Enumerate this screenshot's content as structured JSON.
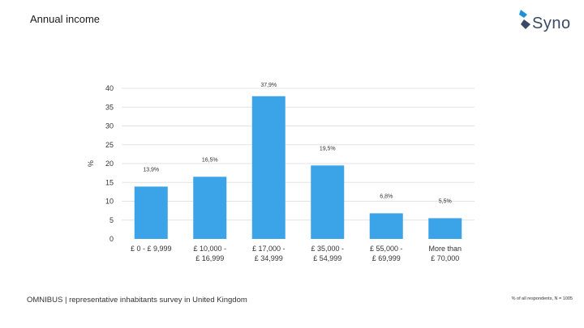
{
  "header": {
    "title": "Annual income",
    "logo_text": "Syno"
  },
  "footer": {
    "source": "OMNIBUS | representative inhabitants survey in United Kingdom",
    "base": "% of all respondents, N = 1005"
  },
  "colors": {
    "bar": "#3ba4e8",
    "grid": "#e3e3e3",
    "logo_mark": "#1e90d8",
    "logo_dark": "#3a4a66"
  },
  "chart_data": {
    "type": "bar",
    "title": "",
    "ylabel": "%",
    "ylim": [
      0,
      40
    ],
    "yticks": [
      "0",
      "5",
      "10",
      "15",
      "20",
      "25",
      "30",
      "35",
      "40"
    ],
    "categories": [
      [
        "£ 0 - £ 9,999"
      ],
      [
        "£ 10,000 -",
        "£ 16,999"
      ],
      [
        "£ 17,000 -",
        "£ 34,999"
      ],
      [
        "£ 35,000 -",
        "£ 54,999"
      ],
      [
        "£ 55,000 -",
        "£ 69,999"
      ],
      [
        "More than",
        "£ 70,000"
      ]
    ],
    "values": [
      13.9,
      16.5,
      37.9,
      19.5,
      6.8,
      5.5
    ],
    "labels": [
      "13,9%",
      "16,5%",
      "37,9%",
      "19,5%",
      "6,8%",
      "5,5%"
    ],
    "grid": true,
    "legend": "none"
  }
}
